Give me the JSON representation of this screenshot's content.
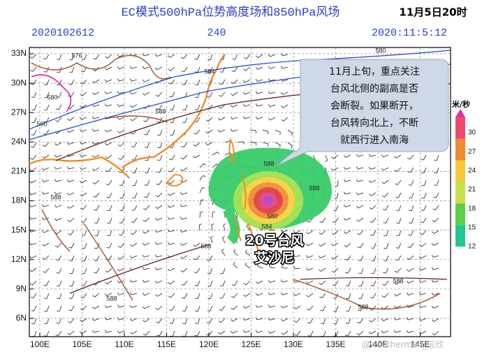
{
  "header": {
    "title": "EC模式500hPa位势高度场和850hPa风场",
    "valid_time": "11月5日20时",
    "init_code": "2020102612",
    "forecast_hour": "240",
    "valid_stamp": "2020:11:5:12"
  },
  "map": {
    "lat_ticks": [
      "33N",
      "30N",
      "27N",
      "24N",
      "21N",
      "18N",
      "15N",
      "12N",
      "9N",
      "6N"
    ],
    "lon_ticks": [
      "100E",
      "105E",
      "110E",
      "115E",
      "120E",
      "125E",
      "130E",
      "135E",
      "140E",
      "145E"
    ]
  },
  "contour_labels": [
    "576",
    "580",
    "584",
    "588",
    "584",
    "580",
    "588",
    "588",
    "588",
    "588",
    "588",
    "588",
    "588",
    "580",
    "584",
    "560"
  ],
  "callout": [
    "11月上旬，重点关注",
    "台风北侧的副高是否",
    "会断裂。如果断开，",
    "台风转向北上，不断",
    "就西行进入南海"
  ],
  "typhoon_label": [
    "20号台风",
    "艾沙尼"
  ],
  "colorbar": {
    "unit": "米/秒",
    "labels": [
      30,
      27,
      24,
      21,
      18,
      15,
      12
    ]
  },
  "watermark": "@weatherman_信欣"
}
